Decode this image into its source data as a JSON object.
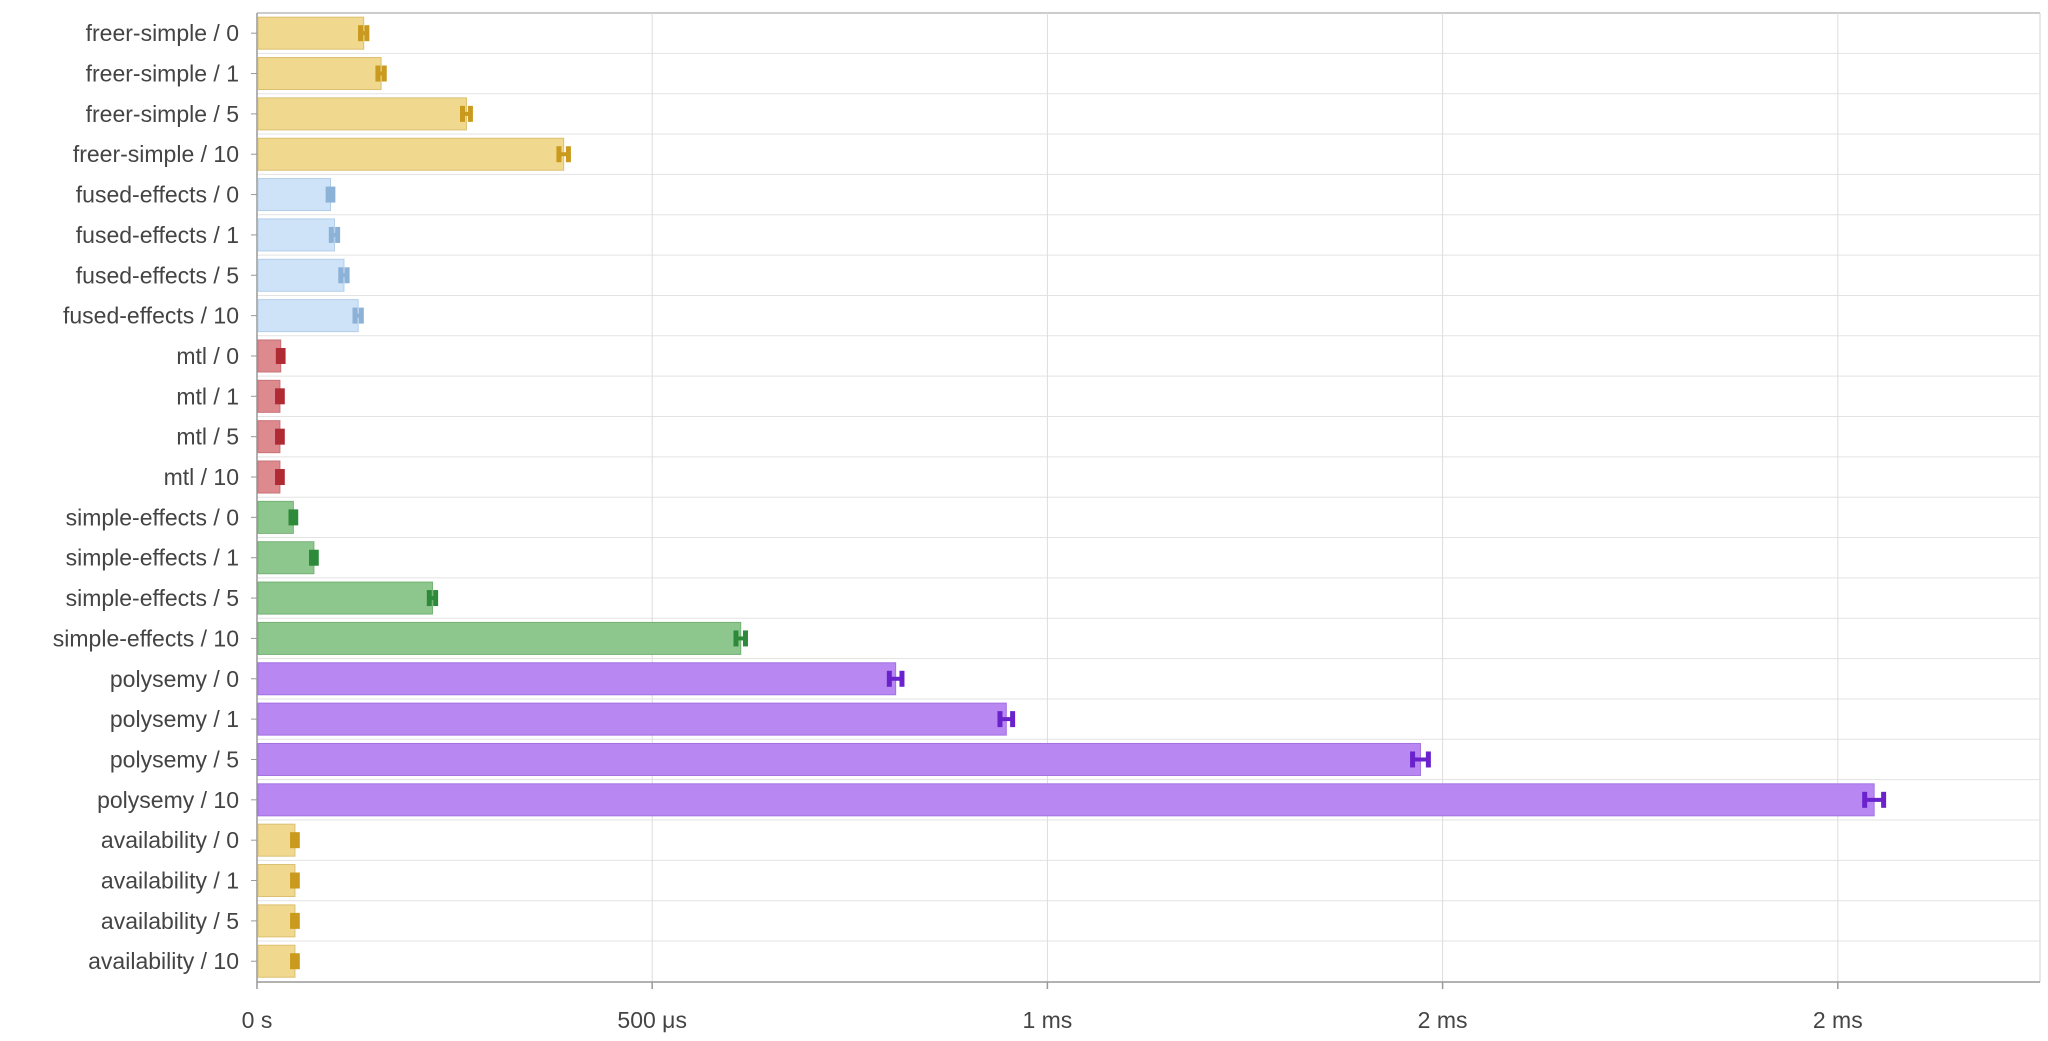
{
  "chart_data": {
    "type": "bar",
    "orientation": "horizontal",
    "title": "",
    "xlabel": "",
    "ylabel": "",
    "unit": "µs",
    "xlim": [
      0,
      2250
    ],
    "xticks": [
      {
        "value": 0,
        "label": "0 s"
      },
      {
        "value": 500,
        "label": "500 μs"
      },
      {
        "value": 1000,
        "label": "1 ms"
      },
      {
        "value": 1500,
        "label": "2 ms"
      },
      {
        "value": 2000,
        "label": "2 ms"
      }
    ],
    "grid": true,
    "legend": "none",
    "categories": [
      "freer-simple / 0",
      "freer-simple / 1",
      "freer-simple / 5",
      "freer-simple / 10",
      "fused-effects / 0",
      "fused-effects / 1",
      "fused-effects / 5",
      "fused-effects / 10",
      "mtl / 0",
      "mtl / 1",
      "mtl / 5",
      "mtl / 10",
      "simple-effects / 0",
      "simple-effects / 1",
      "simple-effects / 5",
      "simple-effects / 10",
      "polysemy / 0",
      "polysemy / 1",
      "polysemy / 5",
      "polysemy / 10",
      "availability / 0",
      "availability / 1",
      "availability / 5",
      "availability / 10"
    ],
    "values": [
      135,
      157,
      265,
      388,
      93,
      98,
      110,
      128,
      30,
      29,
      29,
      29,
      46,
      72,
      222,
      612,
      808,
      948,
      1472,
      2046,
      48,
      48,
      48,
      48
    ],
    "errors": [
      4,
      4,
      5,
      6,
      3,
      4,
      4,
      4,
      3,
      3,
      3,
      3,
      3,
      3,
      4,
      6,
      8,
      8,
      10,
      12,
      3,
      3,
      3,
      3
    ],
    "group_colors": {
      "freer-simple": {
        "fill": "#f0d88f",
        "stroke": "#dcc070",
        "err": "#c99a1e"
      },
      "fused-effects": {
        "fill": "#cfe3f8",
        "stroke": "#b2cde9",
        "err": "#8cb2d8"
      },
      "mtl": {
        "fill": "#dc8a8e",
        "stroke": "#c87378",
        "err": "#b02a33"
      },
      "simple-effects": {
        "fill": "#8ec78e",
        "stroke": "#74b174",
        "err": "#2d8a3a"
      },
      "polysemy": {
        "fill": "#b987f1",
        "stroke": "#a371e2",
        "err": "#6a23cc"
      },
      "availability": {
        "fill": "#f0d88f",
        "stroke": "#dcc070",
        "err": "#c99a1e"
      }
    }
  }
}
